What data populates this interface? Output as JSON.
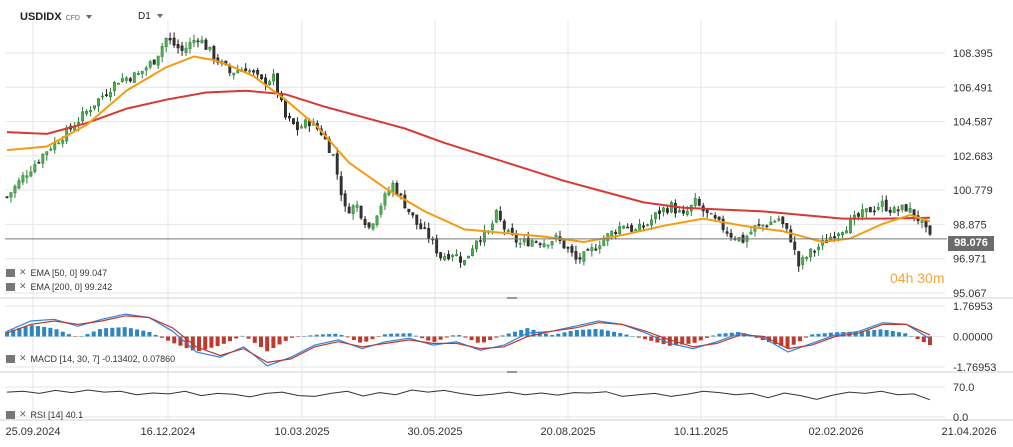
{
  "header": {
    "symbol": "USDIDX",
    "instrument_type": "CFD",
    "timeframe": "D1"
  },
  "legends": {
    "ema50": "EMA [50, 0] 99.047",
    "ema200": "EMA [200, 0] 99.242",
    "macd": "MACD [14, 30, 7] -0.13402, 0.07860",
    "rsi": "RSI [14] 40.1"
  },
  "countdown": {
    "hours": "04",
    "h": "h",
    "minutes": "30",
    "m": "m"
  },
  "current_price": "98.076",
  "colors": {
    "up_candle": "#2f7e3a",
    "down_candle": "#222222",
    "ema50": "#f39c12",
    "ema200": "#d63a32",
    "macd_line": "#2e86de",
    "signal_line": "#c0392b",
    "hist_pos": "#2e86c1",
    "hist_neg": "#c0392b",
    "rsi_line": "#333333",
    "grid": "#e6e6e6"
  },
  "chart_data": [
    {
      "type": "candlestick",
      "title": "USDIDX",
      "y_ticks": [
        "108.395",
        "106.491",
        "104.587",
        "102.683",
        "100.779",
        "98.875",
        "96.971",
        "95.067"
      ],
      "ylim": [
        95.067,
        109.5
      ],
      "x_ticks": [
        "25.09.2024",
        "16.12.2024",
        "10.03.2025",
        "30.05.2025",
        "20.08.2025",
        "10.11.2025",
        "02.02.2026",
        "21.04.2026"
      ],
      "grid": true,
      "close_path": [
        [
          0,
          100.4
        ],
        [
          4,
          101.5
        ],
        [
          10,
          103.0
        ],
        [
          16,
          104.2
        ],
        [
          22,
          105.6
        ],
        [
          28,
          106.9
        ],
        [
          33,
          107.2
        ],
        [
          37,
          108.0
        ],
        [
          40,
          109.2
        ],
        [
          44,
          108.5
        ],
        [
          48,
          109.3
        ],
        [
          52,
          108.2
        ],
        [
          56,
          107.3
        ],
        [
          60,
          107.6
        ],
        [
          64,
          106.8
        ],
        [
          67,
          107.0
        ],
        [
          70,
          104.8
        ],
        [
          73,
          104.2
        ],
        [
          76,
          104.6
        ],
        [
          79,
          104.0
        ],
        [
          82,
          102.7
        ],
        [
          85,
          99.7
        ],
        [
          88,
          99.9
        ],
        [
          91,
          98.7
        ],
        [
          94,
          100.0
        ],
        [
          97,
          101.1
        ],
        [
          100,
          100.0
        ],
        [
          103,
          98.9
        ],
        [
          106,
          98.2
        ],
        [
          109,
          97.1
        ],
        [
          112,
          97.3
        ],
        [
          115,
          96.8
        ],
        [
          118,
          98.1
        ],
        [
          121,
          98.4
        ],
        [
          123,
          99.4
        ],
        [
          126,
          98.3
        ],
        [
          129,
          97.8
        ],
        [
          132,
          98.0
        ],
        [
          135,
          97.9
        ],
        [
          138,
          98.1
        ],
        [
          141,
          97.5
        ],
        [
          143,
          96.9
        ],
        [
          146,
          97.2
        ],
        [
          149,
          97.9
        ],
        [
          152,
          98.4
        ],
        [
          155,
          98.9
        ],
        [
          158,
          98.5
        ],
        [
          161,
          98.9
        ],
        [
          164,
          99.6
        ],
        [
          167,
          99.9
        ],
        [
          170,
          99.3
        ],
        [
          173,
          100.1
        ],
        [
          176,
          99.4
        ],
        [
          179,
          98.9
        ],
        [
          182,
          98.3
        ],
        [
          185,
          98.0
        ],
        [
          188,
          98.7
        ],
        [
          191,
          98.9
        ],
        [
          194,
          99.2
        ],
        [
          197,
          98.1
        ],
        [
          199,
          96.6
        ],
        [
          202,
          97.3
        ],
        [
          205,
          97.8
        ],
        [
          208,
          98.4
        ],
        [
          211,
          98.8
        ],
        [
          214,
          99.3
        ],
        [
          217,
          99.7
        ],
        [
          220,
          100.0
        ],
        [
          223,
          99.6
        ],
        [
          226,
          99.8
        ],
        [
          229,
          99.2
        ],
        [
          232,
          98.1
        ]
      ],
      "ema50_path": [
        [
          0,
          103.0
        ],
        [
          10,
          103.2
        ],
        [
          20,
          104.4
        ],
        [
          30,
          106.3
        ],
        [
          40,
          107.6
        ],
        [
          47,
          108.2
        ],
        [
          52,
          108.0
        ],
        [
          56,
          107.7
        ],
        [
          62,
          107.1
        ],
        [
          70,
          105.8
        ],
        [
          78,
          104.3
        ],
        [
          86,
          102.3
        ],
        [
          95,
          100.9
        ],
        [
          105,
          99.6
        ],
        [
          115,
          98.6
        ],
        [
          125,
          98.4
        ],
        [
          135,
          98.2
        ],
        [
          145,
          97.9
        ],
        [
          155,
          98.3
        ],
        [
          165,
          98.8
        ],
        [
          175,
          99.2
        ],
        [
          185,
          98.8
        ],
        [
          195,
          98.5
        ],
        [
          205,
          97.9
        ],
        [
          212,
          98.1
        ],
        [
          220,
          98.9
        ],
        [
          227,
          99.4
        ],
        [
          232,
          99.047
        ]
      ],
      "ema200_path": [
        [
          0,
          104.0
        ],
        [
          10,
          103.9
        ],
        [
          20,
          104.5
        ],
        [
          30,
          105.3
        ],
        [
          40,
          105.8
        ],
        [
          50,
          106.2
        ],
        [
          60,
          106.3
        ],
        [
          70,
          106.1
        ],
        [
          80,
          105.4
        ],
        [
          90,
          104.8
        ],
        [
          100,
          104.2
        ],
        [
          110,
          103.4
        ],
        [
          120,
          102.7
        ],
        [
          130,
          102.0
        ],
        [
          140,
          101.3
        ],
        [
          150,
          100.7
        ],
        [
          160,
          100.1
        ],
        [
          170,
          99.8
        ],
        [
          180,
          99.7
        ],
        [
          190,
          99.6
        ],
        [
          200,
          99.4
        ],
        [
          210,
          99.2
        ],
        [
          220,
          99.2
        ],
        [
          232,
          99.242
        ]
      ]
    },
    {
      "type": "line",
      "title": "MACD [14, 30, 7]",
      "y_ticks": [
        "1.76953",
        "0.00000",
        "-1.76953"
      ],
      "ylim": [
        -1.76953,
        1.76953
      ],
      "series": [
        {
          "name": "MACD",
          "values": [
            0.3,
            0.9,
            1.0,
            0.6,
            1.0,
            1.3,
            1.1,
            0.3,
            -0.9,
            -1.2,
            -0.6,
            -1.7,
            -1.2,
            -0.5,
            -0.2,
            -0.7,
            -0.3,
            -0.1,
            -0.5,
            -0.3,
            -0.8,
            -0.5,
            0.2,
            0.3,
            0.6,
            0.9,
            0.7,
            0.2,
            -0.4,
            -0.7,
            -0.3,
            0.2,
            -0.1,
            -0.9,
            -0.4,
            0.1,
            0.3,
            0.8,
            0.7,
            -0.13402
          ]
        },
        {
          "name": "Signal",
          "values": [
            0.2,
            0.7,
            0.9,
            0.7,
            0.9,
            1.2,
            1.1,
            0.5,
            -0.6,
            -1.1,
            -0.7,
            -1.5,
            -1.3,
            -0.6,
            -0.3,
            -0.6,
            -0.4,
            -0.2,
            -0.4,
            -0.4,
            -0.7,
            -0.6,
            0.0,
            0.3,
            0.5,
            0.8,
            0.7,
            0.3,
            -0.2,
            -0.6,
            -0.4,
            0.1,
            0.0,
            -0.7,
            -0.5,
            0.0,
            0.2,
            0.7,
            0.7,
            0.0786
          ]
        }
      ]
    },
    {
      "type": "line",
      "title": "RSI [14]",
      "y_ticks": [
        "70.0",
        "0.0"
      ],
      "ylim": [
        0,
        100
      ],
      "series": [
        {
          "name": "RSI",
          "values": [
            58,
            60,
            55,
            62,
            57,
            63,
            58,
            60,
            52,
            56,
            54,
            60,
            50,
            55,
            53,
            47,
            55,
            58,
            50,
            48,
            55,
            60,
            49,
            57,
            52,
            63,
            58,
            62,
            55,
            50,
            53,
            58,
            52,
            56,
            51,
            57,
            56,
            59,
            48,
            52,
            55,
            48,
            53,
            60,
            57,
            52,
            55,
            45,
            56,
            50,
            41,
            51,
            58,
            55,
            60,
            52,
            54,
            40.1
          ]
        }
      ]
    }
  ]
}
